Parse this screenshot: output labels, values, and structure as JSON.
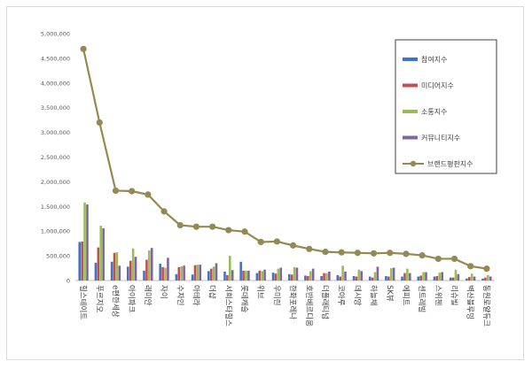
{
  "chart_data": {
    "type": "bar",
    "ylim": [
      0,
      5000000
    ],
    "yticks": [
      "0",
      "500,000",
      "1,000,000",
      "1,500,000",
      "2,000,000",
      "2,500,000",
      "3,000,000",
      "3,500,000",
      "4,000,000",
      "4,500,000",
      "5,000,000"
    ],
    "ytick_values": [
      0,
      500000,
      1000000,
      1500000,
      2000000,
      2500000,
      3000000,
      3500000,
      4000000,
      4500000,
      5000000
    ],
    "grid": false,
    "legend_position": "right",
    "categories": [
      "힐스테이트",
      "푸르지오",
      "e편한세상",
      "아이파크",
      "래미안",
      "자이",
      "수자인",
      "아테라",
      "더샵",
      "서희스타힐스",
      "롯데캐슬",
      "위브",
      "우미린",
      "한화포레나",
      "호반베르디움",
      "더플래티넘",
      "코아루",
      "데시앙",
      "하늘채",
      "SK뷰",
      "에피트",
      "센트레빌",
      "스위첸",
      "리슈빌",
      "벽산블루밍",
      "동원로얄듀크"
    ],
    "series": [
      {
        "name": "참여지수",
        "color": "#4472c4",
        "kind": "bar",
        "values": [
          780000,
          360000,
          380000,
          280000,
          200000,
          340000,
          130000,
          120000,
          190000,
          180000,
          380000,
          150000,
          160000,
          130000,
          100000,
          90000,
          110000,
          90000,
          80000,
          90000,
          80000,
          80000,
          80000,
          60000,
          40000,
          40000
        ]
      },
      {
        "name": "미디어지수",
        "color": "#c0504d",
        "kind": "bar",
        "values": [
          790000,
          670000,
          560000,
          400000,
          420000,
          270000,
          270000,
          310000,
          240000,
          110000,
          200000,
          200000,
          140000,
          120000,
          90000,
          150000,
          80000,
          80000,
          60000,
          80000,
          150000,
          100000,
          90000,
          60000,
          70000,
          60000
        ]
      },
      {
        "name": "소통지수",
        "color": "#9bbb59",
        "kind": "bar",
        "values": [
          1580000,
          1110000,
          570000,
          650000,
          610000,
          260000,
          290000,
          320000,
          280000,
          500000,
          200000,
          190000,
          240000,
          270000,
          190000,
          150000,
          300000,
          220000,
          170000,
          250000,
          240000,
          170000,
          160000,
          220000,
          140000,
          110000
        ]
      },
      {
        "name": "커뮤니티지수",
        "color": "#8064a2",
        "kind": "bar",
        "values": [
          1540000,
          1060000,
          300000,
          480000,
          660000,
          460000,
          300000,
          320000,
          350000,
          210000,
          200000,
          220000,
          260000,
          260000,
          240000,
          180000,
          180000,
          190000,
          280000,
          260000,
          150000,
          170000,
          170000,
          130000,
          80000,
          80000
        ]
      },
      {
        "name": "브랜드평판지수",
        "color": "#938953",
        "kind": "line",
        "values": [
          4690000,
          3200000,
          1820000,
          1810000,
          1740000,
          1400000,
          1120000,
          1090000,
          1090000,
          1020000,
          990000,
          780000,
          790000,
          710000,
          640000,
          580000,
          570000,
          560000,
          550000,
          560000,
          540000,
          510000,
          440000,
          440000,
          290000,
          240000
        ]
      }
    ]
  }
}
